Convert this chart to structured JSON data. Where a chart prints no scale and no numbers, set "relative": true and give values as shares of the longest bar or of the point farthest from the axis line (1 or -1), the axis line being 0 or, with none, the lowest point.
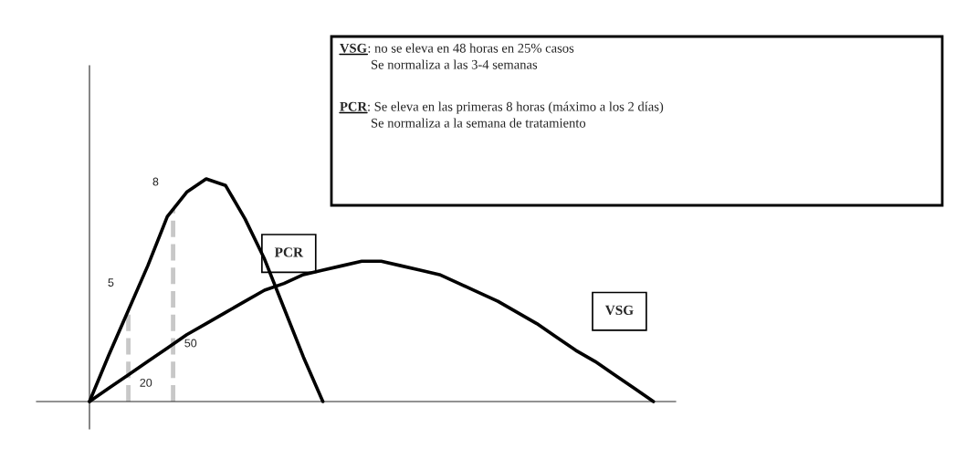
{
  "chart_data": {
    "type": "line",
    "relative": true,
    "categories": [
      null,
      null,
      null,
      null,
      null,
      null,
      null,
      null,
      null,
      null,
      null,
      null,
      null,
      null,
      null,
      null,
      null,
      null,
      null,
      null,
      null,
      null,
      null,
      null,
      null,
      null,
      null,
      null,
      null,
      null
    ],
    "series": [
      {
        "name": "PCR",
        "color": "#000000",
        "values": [
          0,
          0.21,
          0.41,
          0.61,
          0.83,
          0.94,
          1.0,
          0.97,
          0.82,
          0.64,
          0.42,
          0.2,
          0,
          null,
          null,
          null,
          null,
          null,
          null,
          null,
          null,
          null,
          null,
          null,
          null,
          null,
          null,
          null,
          null,
          null
        ]
      },
      {
        "name": "VSG",
        "color": "#000000",
        "values": [
          0,
          0.06,
          0.12,
          0.18,
          0.24,
          0.3,
          0.35,
          0.4,
          0.45,
          0.5,
          0.53,
          0.57,
          0.59,
          0.61,
          0.63,
          0.63,
          0.61,
          0.59,
          0.57,
          0.53,
          0.49,
          0.45,
          0.4,
          0.35,
          0.29,
          0.23,
          0.18,
          0.12,
          0.06,
          0
        ]
      }
    ],
    "annotations": [
      "5",
      "8",
      "20",
      "50",
      "VSG: no se eleva en 48 horas en 25% casos\nSe normaliza a las 3-4 semanas",
      "PCR: Se eleva en las primeras 8 horas (máximo a los 2 días)\nSe normaliza a la semana de tratamiento"
    ],
    "marker": "none",
    "line_style": "solid"
  }
}
